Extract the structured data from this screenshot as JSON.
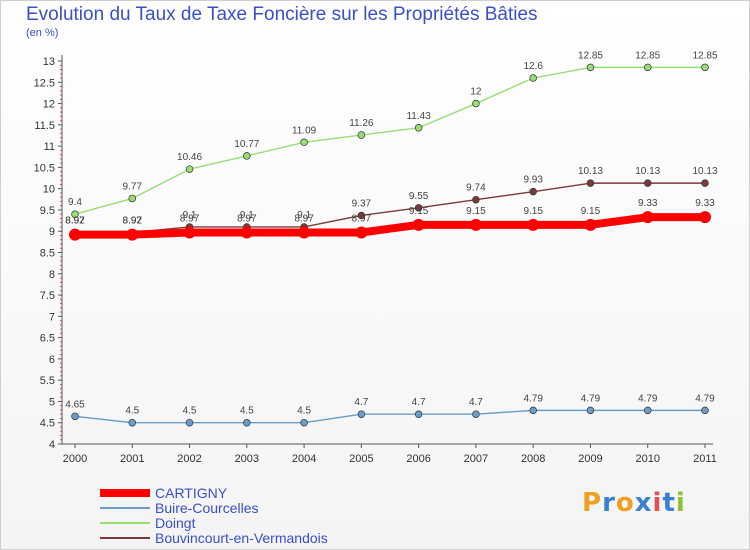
{
  "title": "Evolution du Taux de Taxe Foncière sur les Propriétés Bâties",
  "subtitle": "(en %)",
  "logo_text": "Proxiti",
  "chart_data": {
    "type": "line",
    "x": [
      "2000",
      "2001",
      "2002",
      "2003",
      "2004",
      "2005",
      "2006",
      "2007",
      "2008",
      "2009",
      "2010",
      "2011"
    ],
    "ylim": [
      4,
      13
    ],
    "yticks": [
      "4",
      "4.5",
      "5",
      "5.5",
      "6",
      "6.5",
      "7",
      "7.5",
      "8",
      "8.5",
      "9",
      "9.5",
      "10",
      "10.5",
      "11",
      "11.5",
      "12",
      "12.5",
      "13"
    ],
    "grid": false,
    "legend_position": "bottom-left",
    "series": [
      {
        "name": "CARTIGNY",
        "color": "#ff0000",
        "values": [
          8.92,
          8.92,
          8.97,
          8.97,
          8.97,
          8.97,
          9.15,
          9.15,
          9.15,
          9.15,
          9.33,
          9.33
        ],
        "labels": [
          "8.92",
          "8.92",
          "8.97",
          "8.97",
          "8.97",
          "8.97",
          "9.15",
          "9.15",
          "9.15",
          "9.15",
          "9.33",
          "9.33"
        ]
      },
      {
        "name": "Buire-Courcelles",
        "color": "#6a9ec8",
        "values": [
          4.65,
          4.5,
          4.5,
          4.5,
          4.5,
          4.7,
          4.7,
          4.7,
          4.79,
          4.79,
          4.79,
          4.79
        ],
        "labels": [
          "4.65",
          "4.5",
          "4.5",
          "4.5",
          "4.5",
          "4.7",
          "4.7",
          "4.7",
          "4.79",
          "4.79",
          "4.79",
          "4.79"
        ]
      },
      {
        "name": "Doingt",
        "color": "#99dd77",
        "values": [
          9.4,
          9.77,
          10.46,
          10.77,
          11.09,
          11.26,
          11.43,
          12,
          12.6,
          12.85,
          12.85,
          12.85
        ],
        "labels": [
          "9.4",
          "9.77",
          "10.46",
          "10.77",
          "11.09",
          "11.26",
          "11.43",
          "12",
          "12.6",
          "12.85",
          "12.85",
          "12.85"
        ]
      },
      {
        "name": "Bouvincourt-en-Vermandois",
        "color": "#7a3a3a",
        "values": [
          8.97,
          8.97,
          9.1,
          9.1,
          9.1,
          9.37,
          9.55,
          9.74,
          9.93,
          10.13,
          10.13,
          10.13
        ],
        "labels": [
          "8.97",
          "8.97",
          "9.1",
          "9.1",
          "9.1",
          "9.37",
          "9.55",
          "9.74",
          "9.93",
          "10.13",
          "10.13",
          "10.13"
        ]
      }
    ]
  }
}
